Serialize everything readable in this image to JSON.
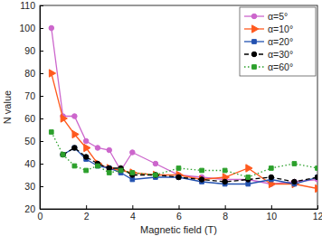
{
  "chart_data": {
    "type": "line",
    "x_label": "Magnetic field (T)",
    "y_label": "N value",
    "x": [
      0.5,
      1,
      1.5,
      2,
      2.5,
      3,
      3.5,
      4,
      5,
      6,
      7,
      8,
      9,
      10,
      11,
      12
    ],
    "series": [
      {
        "name": "α=5°",
        "color": "#cc66cc",
        "marker": "circle",
        "line_style": "solid",
        "values": [
          100,
          61,
          61,
          50,
          47,
          46,
          37,
          45,
          40,
          35,
          34,
          33,
          33,
          31,
          32,
          33
        ]
      },
      {
        "name": "α=10°",
        "color": "#ff5a1f",
        "marker": "triangle",
        "line_style": "solid",
        "values": [
          80,
          60,
          53,
          47,
          40,
          38,
          37,
          36,
          35,
          35,
          33,
          34,
          38,
          31,
          31,
          29
        ]
      },
      {
        "name": "α=20°",
        "color": "#2352b0",
        "marker": "square",
        "line_style": "solid",
        "values": [
          null,
          44,
          47,
          42,
          39,
          38,
          36,
          33,
          34,
          34,
          32,
          31,
          31,
          33,
          31,
          34
        ]
      },
      {
        "name": "α=30°",
        "color": "#000000",
        "marker": "circle",
        "line_style": "dashed",
        "values": [
          null,
          44,
          47,
          43,
          40,
          38,
          38,
          35,
          35,
          34,
          33,
          32,
          33,
          34,
          32,
          34
        ]
      },
      {
        "name": "α=60°",
        "color": "#2ca02c",
        "marker": "square",
        "line_style": "dotted",
        "values": [
          54,
          44,
          39,
          37,
          39,
          36,
          37,
          36,
          35,
          38,
          37,
          37,
          34,
          38,
          40,
          38
        ]
      }
    ],
    "xlim": [
      0,
      12
    ],
    "xticks": [
      0,
      2,
      4,
      6,
      8,
      10,
      12
    ],
    "ylim": [
      20,
      110
    ],
    "yticks": [
      20,
      30,
      40,
      50,
      60,
      70,
      80,
      90,
      100,
      110
    ],
    "grid": false,
    "legend": "top-right"
  }
}
